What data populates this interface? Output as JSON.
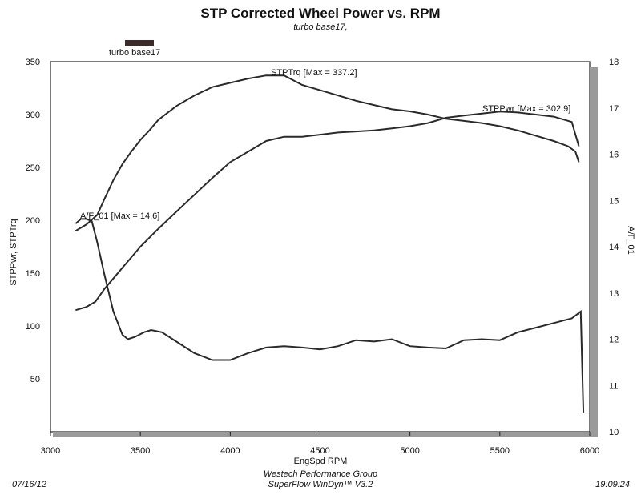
{
  "header": {
    "title": "STP Corrected Wheel Power vs. RPM",
    "subtitle": "turbo base17,"
  },
  "legend": {
    "label": "turbo base17"
  },
  "footer": {
    "date": "07/16/12",
    "company": "Westech Performance Group",
    "software": "SuperFlow WinDyn™ V3.2",
    "time": "19:09:24"
  },
  "chart_data": {
    "type": "line",
    "title": "STP Corrected Wheel Power vs. RPM",
    "subtitle": "turbo base17,",
    "xlabel": "EngSpd  RPM",
    "ylabel": "STPPwr, STPTrq",
    "y2label": "A/F_01",
    "xlim": [
      3000,
      6000
    ],
    "ylim": [
      0,
      350
    ],
    "y2lim": [
      10,
      18
    ],
    "x_ticks": [
      "3000",
      "3500",
      "4000",
      "4500",
      "5000",
      "5500",
      "6000"
    ],
    "y_ticks": [
      "50",
      "100",
      "150",
      "200",
      "250",
      "300",
      "350"
    ],
    "y2_ticks": [
      "10",
      "11",
      "12",
      "13",
      "14",
      "15",
      "16",
      "17",
      "18"
    ],
    "grid": false,
    "legend": {
      "position": "top-left",
      "entries": [
        "turbo base17"
      ]
    },
    "annotations": {
      "trq": "STPTrq [Max = 337.2]",
      "pwr": "STPPwr [Max = 302.9]",
      "af": "A/F_01 [Max = 14.6]"
    },
    "series": [
      {
        "name": "STPTrq",
        "axis": "left",
        "x": [
          3140,
          3200,
          3260,
          3300,
          3350,
          3400,
          3450,
          3500,
          3550,
          3600,
          3700,
          3800,
          3900,
          4000,
          4100,
          4200,
          4300,
          4400,
          4500,
          4600,
          4700,
          4800,
          4900,
          5000,
          5100,
          5200,
          5300,
          5400,
          5500,
          5600,
          5700,
          5800,
          5880,
          5920,
          5940
        ],
        "values": [
          190,
          196,
          205,
          220,
          238,
          253,
          265,
          276,
          285,
          295,
          308,
          318,
          326,
          330,
          334,
          337,
          337,
          328,
          323,
          318,
          313,
          309,
          305,
          303,
          300,
          296,
          294,
          292,
          289,
          285,
          280,
          275,
          270,
          265,
          255
        ]
      },
      {
        "name": "STPPwr",
        "axis": "left",
        "x": [
          3140,
          3200,
          3250,
          3300,
          3400,
          3500,
          3600,
          3700,
          3800,
          3900,
          4000,
          4100,
          4200,
          4300,
          4400,
          4500,
          4600,
          4700,
          4800,
          4900,
          5000,
          5100,
          5200,
          5300,
          5400,
          5500,
          5600,
          5700,
          5800,
          5900,
          5940
        ],
        "values": [
          115,
          118,
          123,
          135,
          155,
          175,
          192,
          208,
          224,
          240,
          255,
          265,
          275,
          279,
          279,
          281,
          283,
          284,
          285,
          287,
          289,
          292,
          297,
          299,
          301,
          302.9,
          302,
          300,
          298,
          293,
          270
        ]
      },
      {
        "name": "A/F_01",
        "axis": "right",
        "x": [
          3140,
          3170,
          3200,
          3230,
          3260,
          3300,
          3350,
          3400,
          3430,
          3470,
          3520,
          3560,
          3620,
          3700,
          3800,
          3900,
          4000,
          4100,
          4200,
          4300,
          4400,
          4500,
          4600,
          4700,
          4800,
          4900,
          5000,
          5100,
          5200,
          5300,
          5400,
          5500,
          5600,
          5700,
          5800,
          5900,
          5950,
          5965
        ],
        "values": [
          14.5,
          14.6,
          14.6,
          14.55,
          14.1,
          13.4,
          12.6,
          12.1,
          12.0,
          12.05,
          12.15,
          12.2,
          12.15,
          11.95,
          11.7,
          11.55,
          11.55,
          11.7,
          11.82,
          11.85,
          11.82,
          11.78,
          11.85,
          11.98,
          11.95,
          12.0,
          11.85,
          11.82,
          11.8,
          11.98,
          12.0,
          11.98,
          12.15,
          12.25,
          12.35,
          12.45,
          12.6,
          10.4
        ]
      }
    ]
  }
}
